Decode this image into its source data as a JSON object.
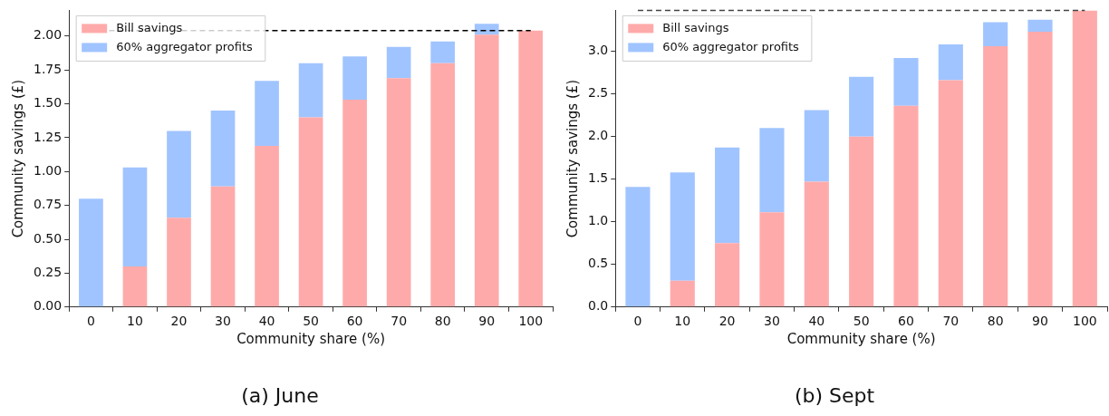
{
  "chart_data": [
    {
      "type": "bar",
      "title": "(a) June",
      "xlabel": "Community share (%)",
      "ylabel": "Community savings (£)",
      "categories": [
        "0",
        "10",
        "20",
        "30",
        "40",
        "50",
        "60",
        "70",
        "80",
        "90",
        "100"
      ],
      "stacked": true,
      "series": [
        {
          "name": "Bill savings",
          "color": "#ffaaaa",
          "values": [
            0,
            0.3,
            0.66,
            0.89,
            1.19,
            1.4,
            1.53,
            1.69,
            1.8,
            2.01,
            2.04
          ]
        },
        {
          "name": "60% aggregator profits",
          "color": "#a0c4ff",
          "values": [
            0.8,
            0.73,
            0.64,
            0.56,
            0.48,
            0.4,
            0.32,
            0.23,
            0.16,
            0.08,
            0
          ]
        }
      ],
      "ylim": [
        0,
        2.19
      ],
      "yticks": [
        {
          "value": 0,
          "label": "0.00"
        },
        {
          "value": 0.25,
          "label": "0.25"
        },
        {
          "value": 0.5,
          "label": "0.50"
        },
        {
          "value": 0.75,
          "label": "0.75"
        },
        {
          "value": 1,
          "label": "1.00"
        },
        {
          "value": 1.25,
          "label": "1.25"
        },
        {
          "value": 1.5,
          "label": "1.50"
        },
        {
          "value": 1.75,
          "label": "1.75"
        },
        {
          "value": 2,
          "label": "2.00"
        }
      ],
      "ref_lines": [
        {
          "axis": "y",
          "value": 2.04,
          "color": "#000000",
          "line_style": "dashed"
        }
      ],
      "legend": "top left",
      "grid": false
    },
    {
      "type": "bar",
      "title": "(b) Sept",
      "xlabel": "Community share (%)",
      "ylabel": "Community savings (£)",
      "categories": [
        "0",
        "10",
        "20",
        "30",
        "40",
        "50",
        "60",
        "70",
        "80",
        "90",
        "100"
      ],
      "stacked": true,
      "series": [
        {
          "name": "Bill savings",
          "color": "#ffaaaa",
          "values": [
            0,
            0.31,
            0.75,
            1.11,
            1.47,
            2.0,
            2.36,
            2.66,
            3.06,
            3.23,
            3.48
          ]
        },
        {
          "name": "60% aggregator profits",
          "color": "#a0c4ff",
          "values": [
            1.41,
            1.27,
            1.12,
            0.99,
            0.84,
            0.7,
            0.56,
            0.42,
            0.28,
            0.14,
            0
          ]
        }
      ],
      "ylim": [
        0,
        3.48
      ],
      "yticks": [
        {
          "value": 0,
          "label": "0.0"
        },
        {
          "value": 0.5,
          "label": "0.5"
        },
        {
          "value": 1,
          "label": "1.0"
        },
        {
          "value": 1.5,
          "label": "1.5"
        },
        {
          "value": 2,
          "label": "2.0"
        },
        {
          "value": 2.5,
          "label": "2.5"
        },
        {
          "value": 3,
          "label": "3.0"
        }
      ],
      "ref_lines": [
        {
          "axis": "y",
          "value": 3.48,
          "color": "#444444",
          "line_style": "dashed"
        }
      ],
      "legend": "top left",
      "grid": false
    }
  ]
}
